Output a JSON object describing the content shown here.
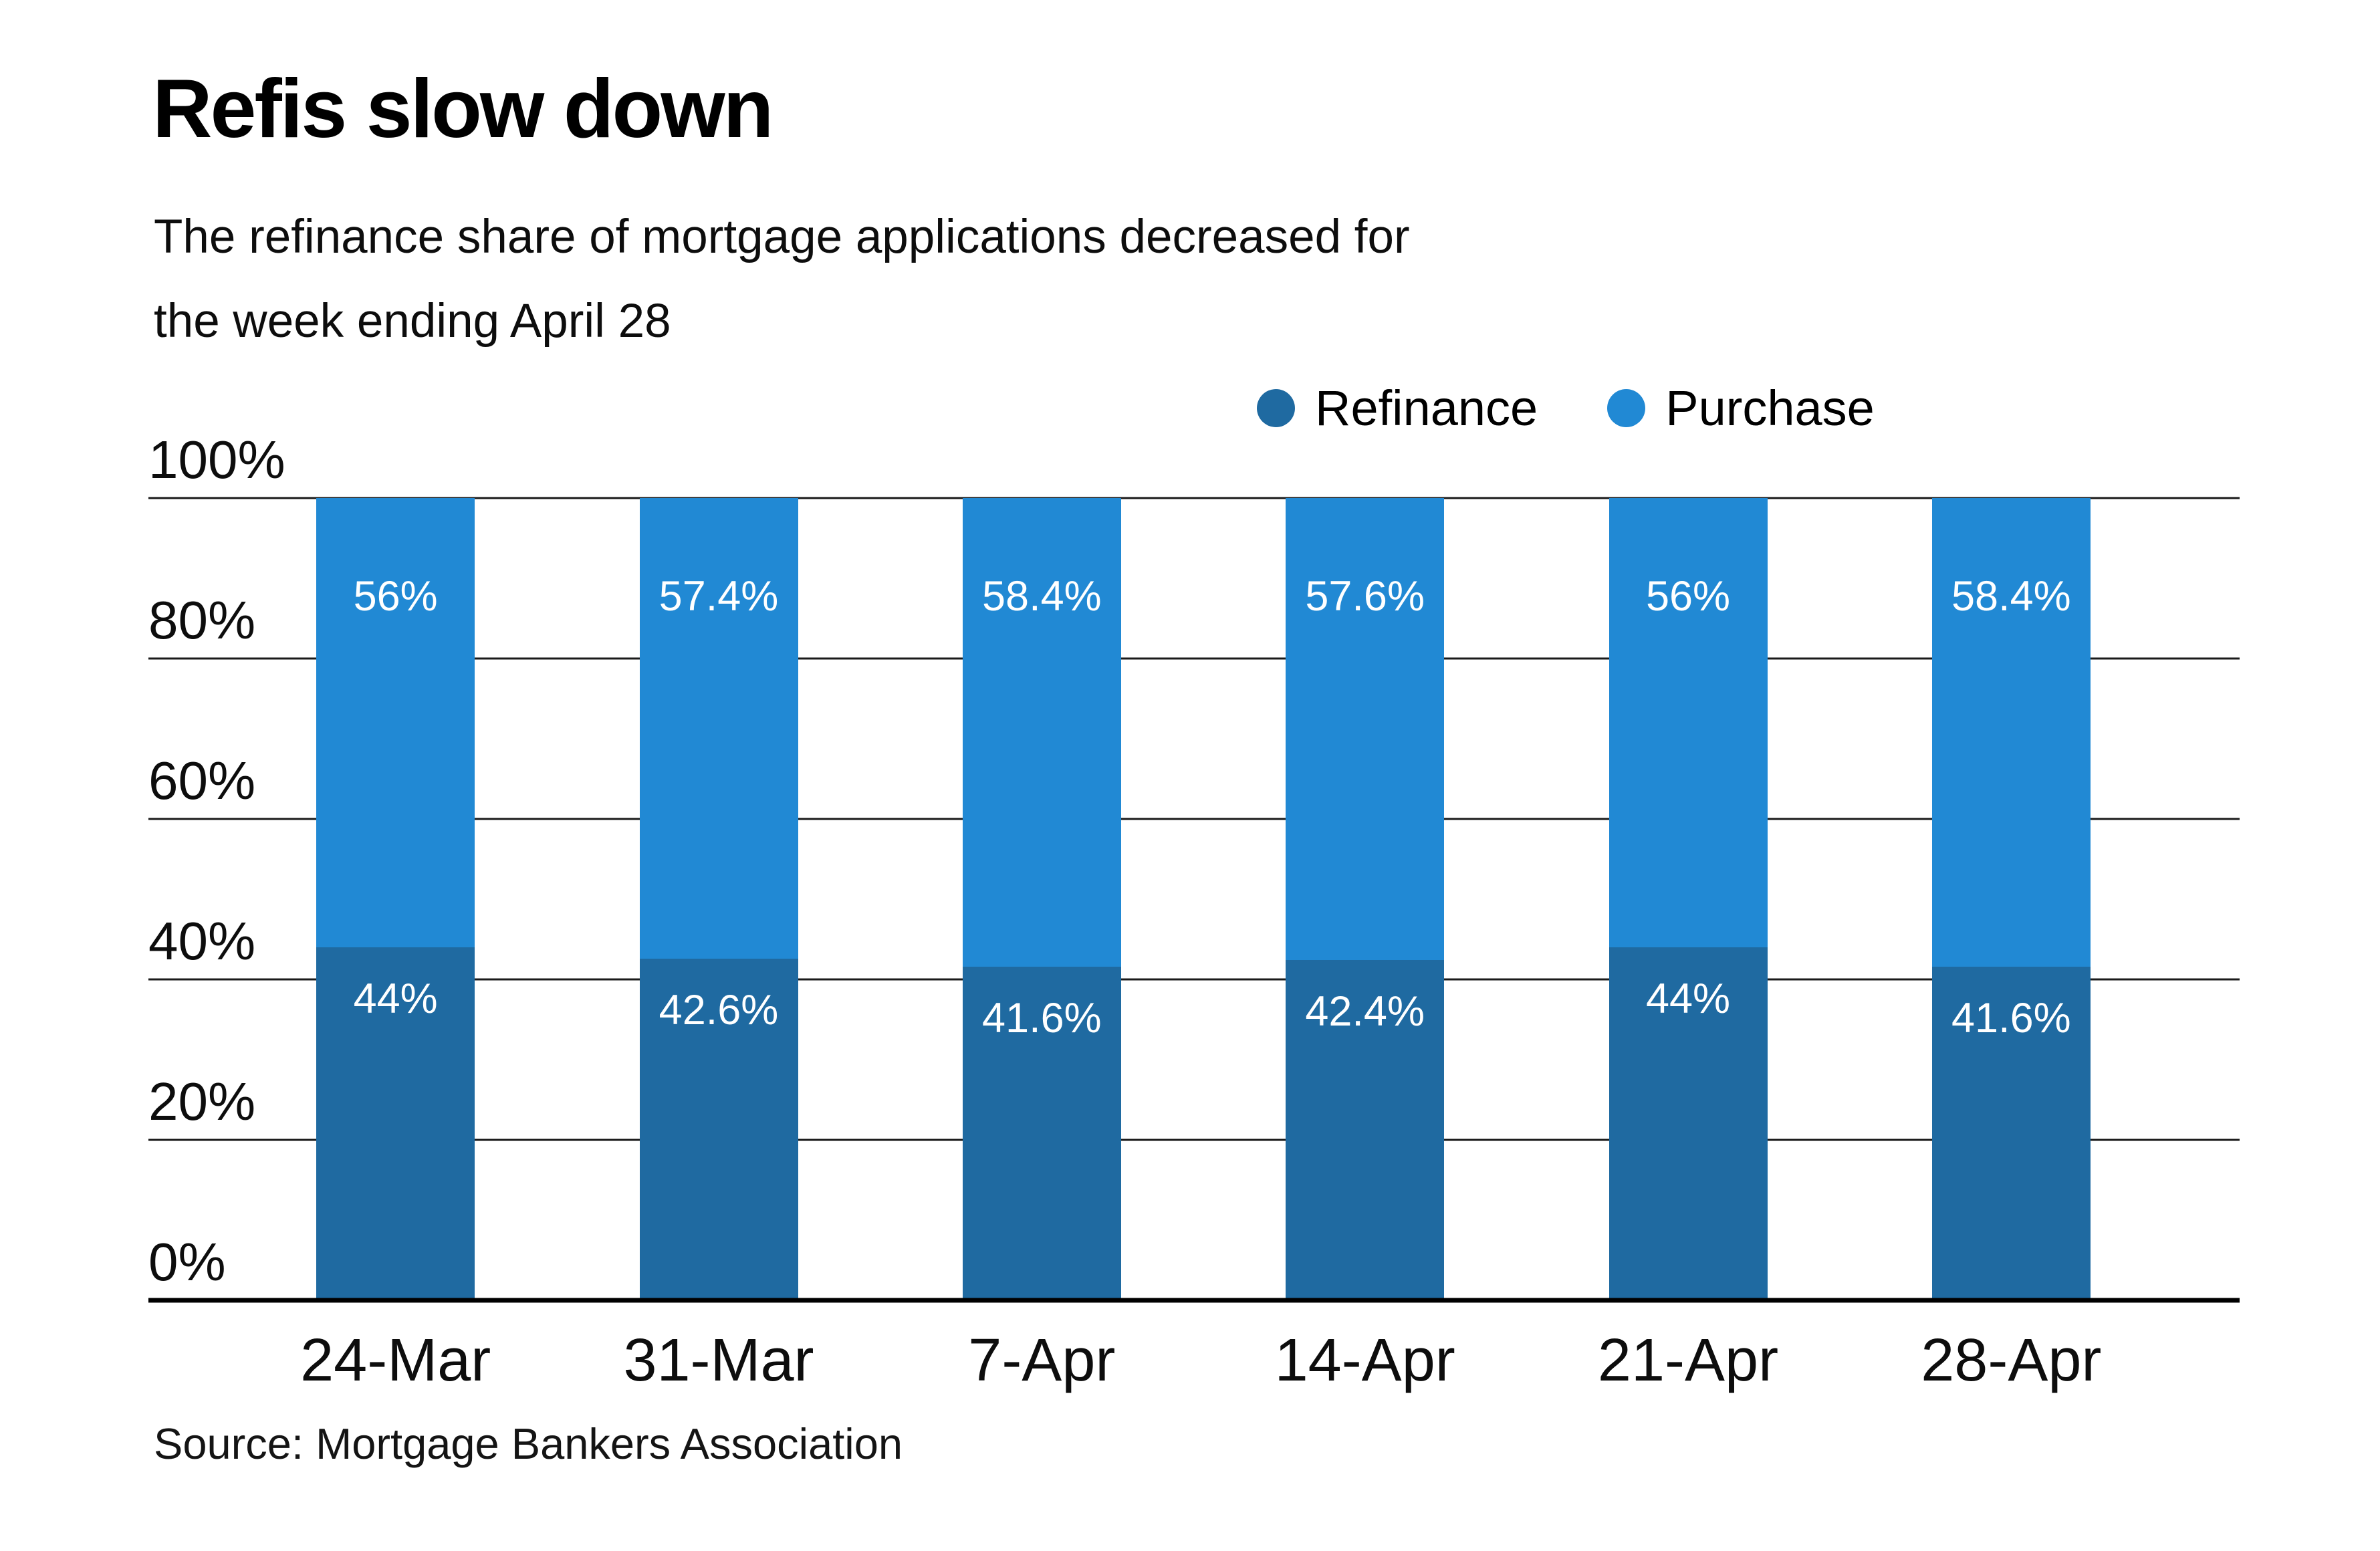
{
  "header": {
    "title": "Refis slow down",
    "subtitle": "The refinance share of mortgage applications decreased for\nthe week ending April 28"
  },
  "legend": {
    "items": [
      {
        "label": "Refinance",
        "color": "#1f6aa1"
      },
      {
        "label": "Purchase",
        "color": "#2189d4"
      }
    ]
  },
  "footer": {
    "source": "Source: Mortgage Bankers Association"
  },
  "chart_data": {
    "type": "bar",
    "stacked": true,
    "title": "Refis slow down",
    "subtitle": "The refinance share of mortgage applications decreased for the week ending April 28",
    "source": "Source: Mortgage Bankers Association",
    "categories": [
      "24-Mar",
      "31-Mar",
      "7-Apr",
      "14-Apr",
      "21-Apr",
      "28-Apr"
    ],
    "series": [
      {
        "name": "Refinance",
        "color": "#1f6aa1",
        "values": [
          44,
          42.6,
          41.6,
          42.4,
          44,
          41.6
        ],
        "labels": [
          "44%",
          "42.6%",
          "41.6%",
          "42.4%",
          "44%",
          "41.6%"
        ]
      },
      {
        "name": "Purchase",
        "color": "#2189d4",
        "values": [
          56,
          57.4,
          58.4,
          57.6,
          56,
          58.4
        ],
        "labels": [
          "56%",
          "57.4%",
          "58.4%",
          "57.6%",
          "56%",
          "58.4%"
        ]
      }
    ],
    "y_axis": {
      "min": 0,
      "max": 100,
      "tick_values": [
        100,
        80,
        60,
        40,
        20,
        0
      ],
      "tick_labels": [
        "100%",
        "80%",
        "60%",
        "40%",
        "20%",
        "0%"
      ]
    },
    "value_label_color": "#ffffff",
    "grid": true,
    "gridline_color": "#1a1a1a",
    "baseline_color": "#000000",
    "legend_position": "top-right"
  }
}
